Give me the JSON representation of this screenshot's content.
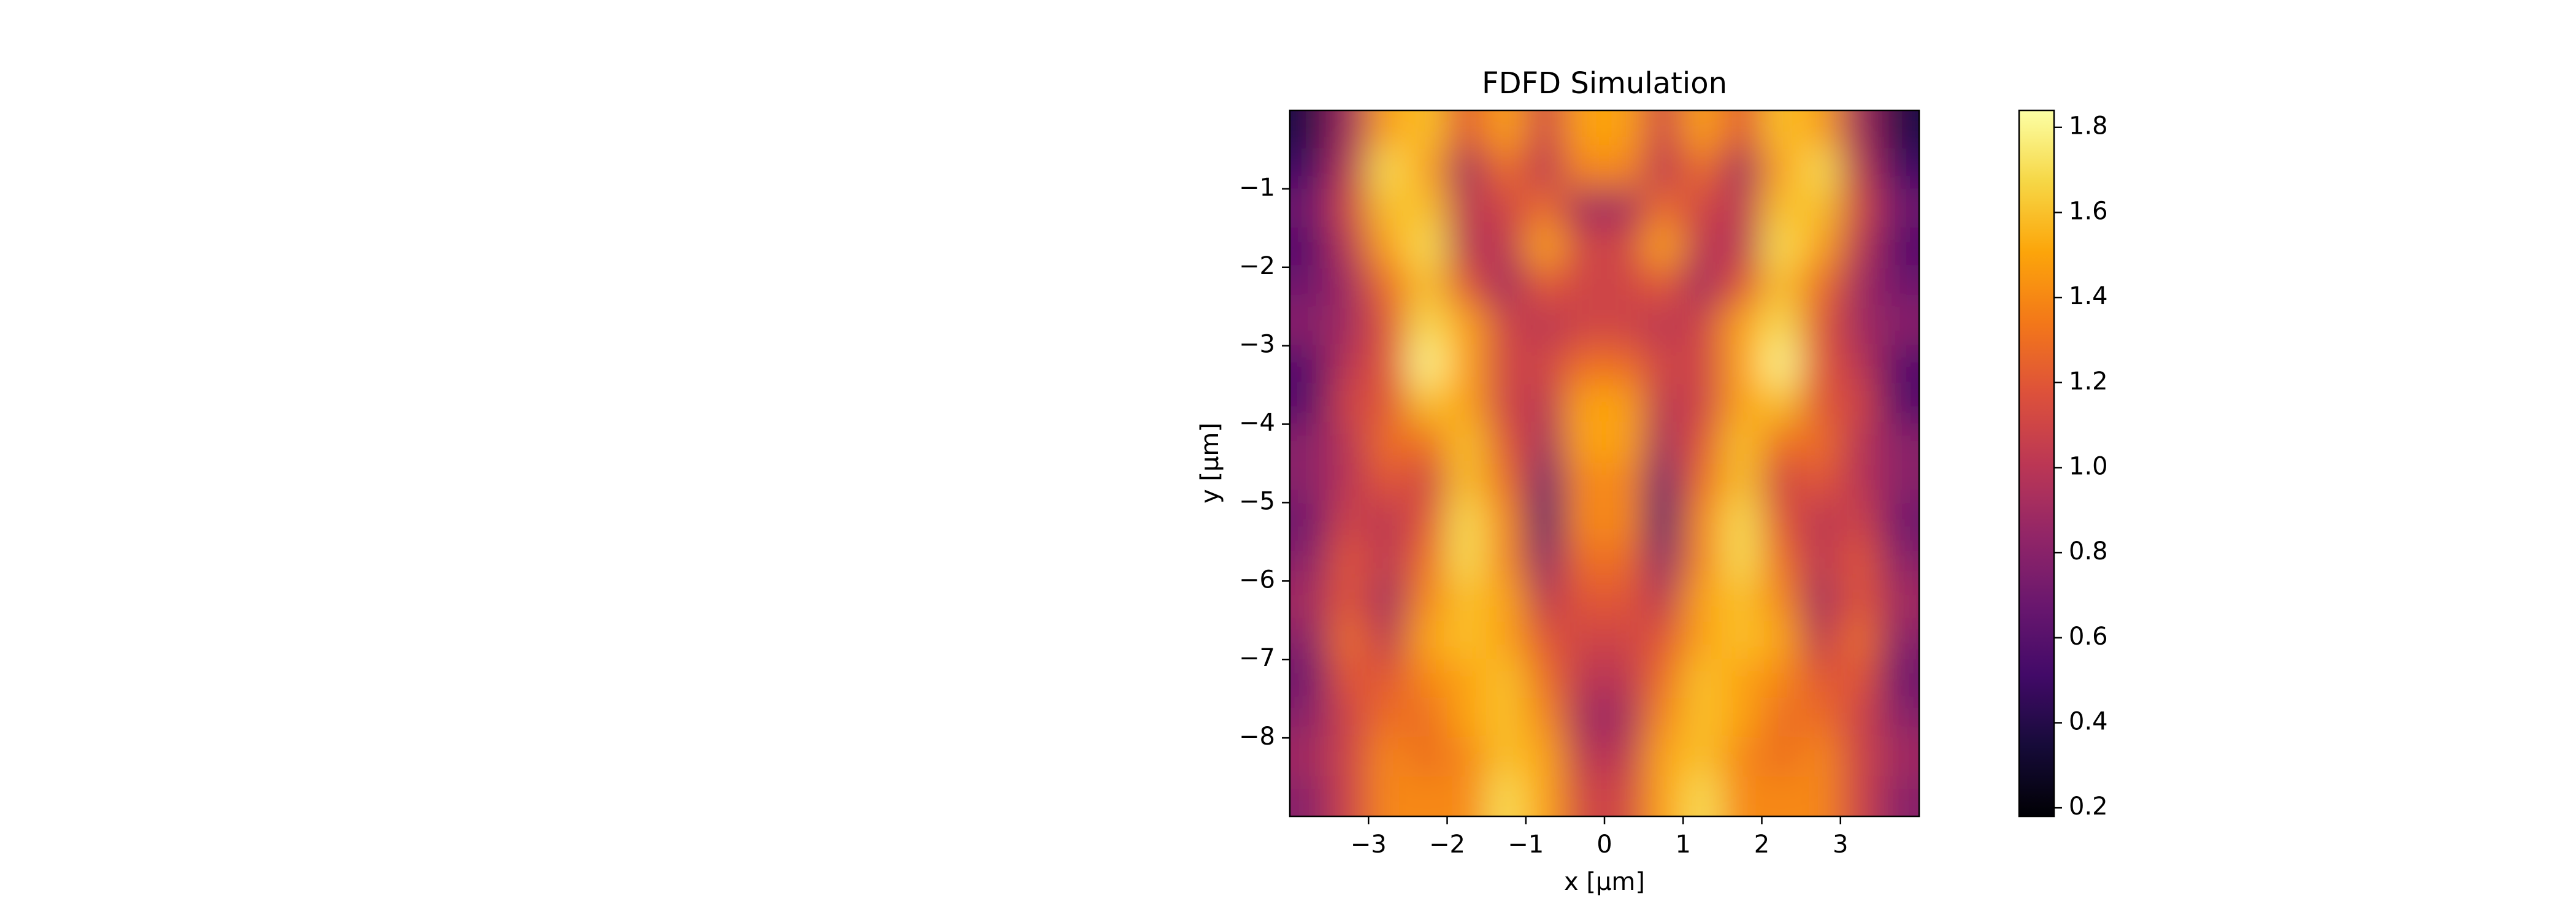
{
  "chart_data": {
    "type": "heatmap",
    "title": "FDFD Simulation",
    "xlabel": "x [μm]",
    "ylabel": "y [μm]",
    "colormap": "inferno",
    "xlim": [
      -4,
      4
    ],
    "ylim": [
      -9,
      0
    ],
    "clim": [
      0.18,
      1.84
    ],
    "xticks": [
      {
        "value": -3,
        "label": "−3"
      },
      {
        "value": -2,
        "label": "−2"
      },
      {
        "value": -1,
        "label": "−1"
      },
      0,
      1,
      2,
      3
    ],
    "yticks": [
      {
        "value": -1,
        "label": "−1"
      },
      {
        "value": -2,
        "label": "−2"
      },
      {
        "value": -3,
        "label": "−3"
      },
      {
        "value": -4,
        "label": "−4"
      },
      {
        "value": -5,
        "label": "−5"
      },
      {
        "value": -6,
        "label": "−6"
      },
      {
        "value": -7,
        "label": "−7"
      },
      {
        "value": -8,
        "label": "−8"
      }
    ],
    "cticks": [
      0.2,
      0.4,
      0.6,
      0.8,
      {
        "value": 1,
        "label": "1.0"
      },
      1.2,
      1.4,
      1.6,
      1.8
    ],
    "x": [
      -3.75,
      -3.25,
      -2.75,
      -2.25,
      -1.75,
      -1.25,
      -0.75,
      -0.25,
      0.25,
      0.75,
      1.25,
      1.75,
      2.25,
      2.75,
      3.25,
      3.75
    ],
    "y": [
      -0.25,
      -0.75,
      -1.25,
      -1.75,
      -2.25,
      -2.75,
      -3.25,
      -3.75,
      -4.25,
      -4.75,
      -5.25,
      -5.75,
      -6.25,
      -6.75,
      -7.25,
      -7.75,
      -8.25,
      -8.75
    ],
    "z": [
      [
        0.4,
        0.9,
        1.5,
        1.6,
        1.2,
        1.5,
        1.1,
        1.5,
        1.5,
        1.1,
        1.5,
        1.2,
        1.6,
        1.5,
        0.9,
        0.4
      ],
      [
        0.5,
        1.0,
        1.7,
        1.5,
        0.9,
        1.3,
        1.0,
        1.4,
        1.4,
        1.0,
        1.3,
        0.9,
        1.5,
        1.7,
        1.0,
        0.5
      ],
      [
        0.7,
        1.1,
        1.6,
        1.6,
        1.0,
        1.1,
        1.3,
        0.9,
        0.9,
        1.3,
        1.1,
        1.0,
        1.6,
        1.6,
        1.1,
        0.7
      ],
      [
        0.6,
        1.0,
        1.5,
        1.7,
        1.0,
        1.0,
        1.5,
        1.1,
        1.1,
        1.5,
        1.0,
        1.0,
        1.7,
        1.5,
        1.0,
        0.6
      ],
      [
        0.7,
        0.9,
        1.3,
        1.6,
        1.2,
        0.9,
        1.2,
        1.1,
        1.1,
        1.2,
        0.9,
        1.2,
        1.6,
        1.3,
        0.9,
        0.7
      ],
      [
        0.8,
        0.9,
        1.2,
        1.7,
        1.5,
        1.1,
        1.0,
        1.1,
        1.1,
        1.0,
        1.1,
        1.5,
        1.7,
        1.2,
        0.9,
        0.8
      ],
      [
        0.6,
        1.0,
        1.2,
        1.8,
        1.5,
        1.1,
        1.1,
        1.3,
        1.3,
        1.1,
        1.1,
        1.5,
        1.8,
        1.2,
        1.0,
        0.6
      ],
      [
        0.6,
        1.1,
        1.2,
        1.6,
        1.5,
        1.1,
        1.0,
        1.5,
        1.5,
        1.0,
        1.1,
        1.5,
        1.6,
        1.2,
        1.1,
        0.6
      ],
      [
        0.8,
        1.0,
        1.3,
        1.3,
        1.6,
        1.2,
        0.9,
        1.5,
        1.5,
        0.9,
        1.2,
        1.6,
        1.3,
        1.3,
        1.0,
        0.8
      ],
      [
        0.8,
        1.0,
        1.2,
        1.1,
        1.6,
        1.3,
        0.7,
        1.4,
        1.4,
        0.7,
        1.3,
        1.6,
        1.1,
        1.2,
        1.0,
        0.8
      ],
      [
        0.7,
        1.1,
        1.0,
        1.2,
        1.7,
        1.4,
        0.6,
        1.4,
        1.4,
        0.6,
        1.4,
        1.7,
        1.2,
        1.0,
        1.1,
        0.7
      ],
      [
        0.8,
        1.2,
        1.0,
        1.3,
        1.7,
        1.4,
        0.8,
        1.3,
        1.3,
        0.8,
        1.4,
        1.7,
        1.3,
        1.0,
        1.2,
        0.8
      ],
      [
        0.9,
        1.2,
        0.9,
        1.4,
        1.6,
        1.5,
        1.0,
        1.2,
        1.2,
        1.0,
        1.5,
        1.6,
        1.4,
        0.9,
        1.2,
        0.9
      ],
      [
        0.8,
        1.3,
        1.0,
        1.5,
        1.6,
        1.5,
        1.2,
        1.1,
        1.1,
        1.2,
        1.5,
        1.6,
        1.5,
        1.0,
        1.3,
        0.8
      ],
      [
        0.7,
        1.2,
        1.2,
        1.4,
        1.5,
        1.6,
        1.3,
        1.0,
        1.0,
        1.3,
        1.6,
        1.5,
        1.4,
        1.2,
        1.2,
        0.7
      ],
      [
        0.8,
        1.1,
        1.3,
        1.3,
        1.5,
        1.6,
        1.4,
        0.9,
        0.9,
        1.4,
        1.6,
        1.5,
        1.3,
        1.3,
        1.1,
        0.8
      ],
      [
        0.9,
        1.1,
        1.4,
        1.3,
        1.4,
        1.6,
        1.5,
        1.0,
        1.0,
        1.5,
        1.6,
        1.4,
        1.3,
        1.4,
        1.1,
        0.9
      ],
      [
        0.8,
        1.1,
        1.4,
        1.4,
        1.4,
        1.7,
        1.5,
        1.1,
        1.1,
        1.5,
        1.7,
        1.4,
        1.4,
        1.4,
        1.1,
        0.8
      ]
    ]
  }
}
